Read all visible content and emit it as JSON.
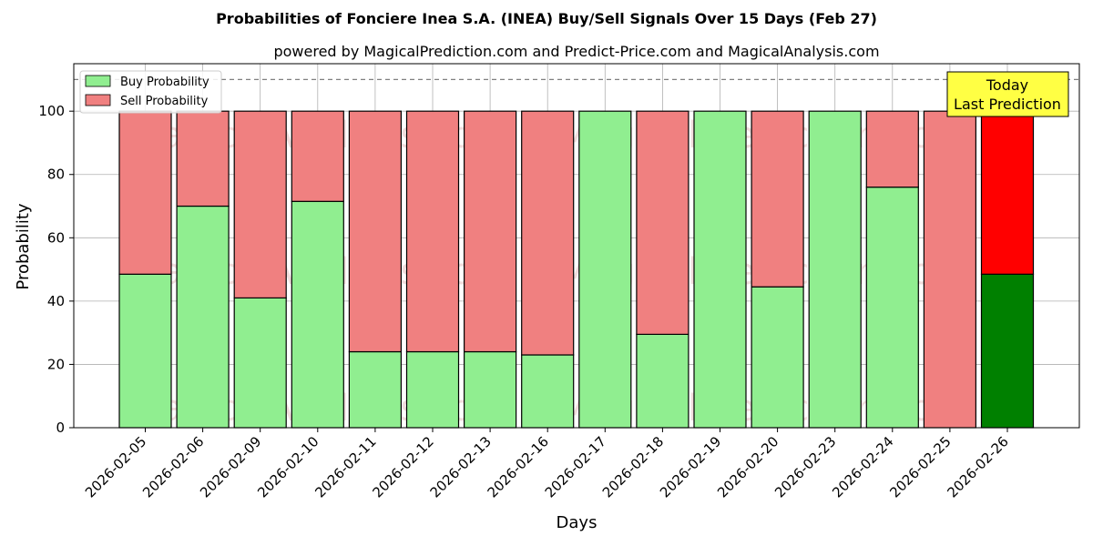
{
  "chart_data": {
    "type": "bar",
    "stacked": true,
    "title": "Probabilities of Fonciere Inea S.A. (INEA) Buy/Sell Signals Over 15 Days (Feb 27)",
    "subtitle": "powered by MagicalPrediction.com and Predict-Price.com and MagicalAnalysis.com",
    "xlabel": "Days",
    "ylabel": "Probability",
    "ylim": [
      0,
      115
    ],
    "yticks": [
      0,
      20,
      40,
      60,
      80,
      100
    ],
    "categories": [
      "2026-02-05",
      "2026-02-06",
      "2026-02-09",
      "2026-02-10",
      "2026-02-11",
      "2026-02-12",
      "2026-02-13",
      "2026-02-16",
      "2026-02-17",
      "2026-02-18",
      "2026-02-19",
      "2026-02-20",
      "2026-02-23",
      "2026-02-24",
      "2026-02-25",
      "2026-02-26"
    ],
    "series": [
      {
        "name": "Buy Probability",
        "color": "#90ee90",
        "values": [
          48.5,
          70,
          41,
          71.5,
          24,
          24,
          24,
          23,
          100,
          29.5,
          100,
          44.5,
          100,
          76,
          0,
          48.5
        ]
      },
      {
        "name": "Sell Probability",
        "color": "#f08080",
        "values": [
          51.5,
          30,
          59,
          28.5,
          76,
          76,
          76,
          77,
          0,
          70.5,
          0,
          55.5,
          0,
          24,
          100,
          51.5
        ]
      }
    ],
    "highlight": {
      "index": 15,
      "buy_color": "#008000",
      "sell_color": "#ff0000"
    },
    "reference_line": {
      "y": 110,
      "style": "dashed",
      "color": "#808080"
    },
    "annotation": {
      "lines": [
        "Today",
        "Last Prediction"
      ],
      "background": "#ffff44"
    },
    "grid": true,
    "legend_position": "top-left",
    "watermarks": [
      "MagicalAnalysis.com",
      "MagicalPrediction.com"
    ]
  }
}
